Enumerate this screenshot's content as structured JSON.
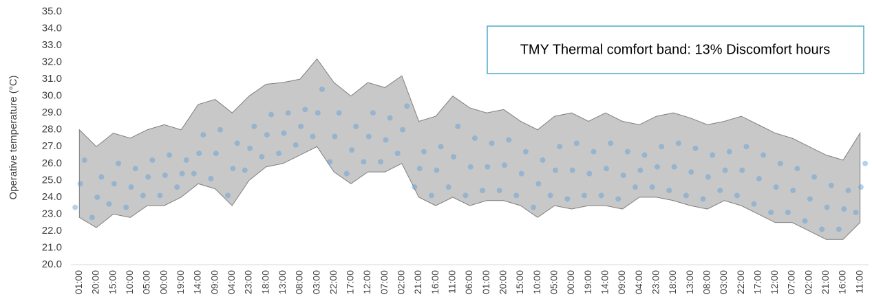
{
  "chart_data": {
    "type": "band_scatter",
    "ylabel": "Operative temperature (°C)",
    "annotation": "TMY Thermal comfort band: 13% Discomfort hours",
    "categories": [
      "01:00",
      "20:00",
      "15:00",
      "10:00",
      "05:00",
      "00:00",
      "19:00",
      "14:00",
      "09:00",
      "04:00",
      "23:00",
      "18:00",
      "13:00",
      "08:00",
      "03:00",
      "22:00",
      "17:00",
      "12:00",
      "07:00",
      "02:00",
      "21:00",
      "16:00",
      "11:00",
      "06:00",
      "01:00",
      "20:00",
      "15:00",
      "10:00",
      "05:00",
      "00:00",
      "19:00",
      "14:00",
      "09:00",
      "04:00",
      "23:00",
      "18:00",
      "13:00",
      "08:00",
      "03:00",
      "22:00",
      "17:00",
      "12:00",
      "07:00",
      "02:00",
      "21:00",
      "16:00",
      "11:00"
    ],
    "band": {
      "color": "#c8c8c8",
      "edge_color": "#7f7f7f",
      "upper": [
        28.0,
        27.0,
        27.8,
        27.5,
        28.0,
        28.3,
        28.0,
        29.5,
        29.8,
        29.0,
        30.0,
        30.7,
        30.8,
        31.0,
        32.2,
        30.8,
        30.0,
        30.8,
        30.5,
        31.2,
        28.5,
        28.8,
        30.0,
        29.3,
        29.0,
        29.2,
        28.5,
        28.0,
        28.8,
        29.0,
        28.5,
        29.0,
        28.5,
        28.3,
        28.8,
        29.0,
        28.7,
        28.3,
        28.5,
        28.8,
        28.3,
        27.8,
        27.5,
        27.0,
        26.5,
        26.2,
        27.8
      ],
      "lower": [
        22.8,
        22.2,
        23.0,
        22.8,
        23.5,
        23.5,
        24.0,
        24.8,
        24.5,
        23.5,
        25.0,
        25.8,
        26.0,
        26.5,
        27.0,
        25.5,
        24.8,
        25.5,
        25.5,
        26.0,
        24.0,
        23.5,
        24.0,
        23.5,
        23.8,
        23.8,
        23.5,
        22.8,
        23.5,
        23.3,
        23.5,
        23.5,
        23.3,
        24.0,
        24.0,
        23.8,
        23.5,
        23.3,
        23.8,
        23.5,
        23.0,
        22.5,
        22.5,
        22.0,
        21.5,
        21.5,
        22.5
      ]
    },
    "points": {
      "color": "#5b9bd5",
      "series": [
        {
          "values": [
            23.4,
            22.8,
            23.6,
            23.4,
            24.1,
            24.1,
            24.6,
            25.4,
            25.1,
            24.1,
            25.6,
            26.4,
            26.6,
            27.1,
            27.6,
            26.1,
            25.4,
            26.1,
            26.1,
            26.6,
            24.6,
            24.1,
            24.6,
            24.1,
            24.4,
            24.4,
            24.1,
            23.4,
            24.1,
            23.9,
            24.1,
            24.1,
            23.9,
            24.6,
            24.6,
            24.4,
            24.1,
            23.9,
            24.4,
            24.1,
            23.6,
            23.1,
            23.1,
            22.6,
            22.1,
            22.1,
            23.1
          ]
        },
        {
          "values": [
            24.8,
            24.0,
            24.8,
            24.6,
            25.2,
            25.3,
            25.4,
            26.6,
            26.6,
            25.7,
            26.9,
            27.7,
            27.8,
            28.2,
            29.0,
            27.6,
            26.8,
            27.6,
            27.4,
            28.0,
            25.7,
            25.6,
            26.4,
            25.8,
            25.8,
            25.9,
            25.4,
            24.8,
            25.6,
            25.6,
            25.4,
            25.7,
            25.3,
            25.6,
            25.8,
            25.8,
            25.5,
            25.2,
            25.6,
            25.6,
            25.1,
            24.6,
            24.4,
            23.9,
            23.4,
            23.3,
            24.6
          ]
        },
        {
          "values": [
            26.2,
            25.2,
            26.0,
            25.7,
            26.2,
            26.5,
            26.2,
            27.7,
            28.0,
            27.2,
            28.2,
            28.9,
            29.0,
            29.2,
            30.4,
            29.0,
            28.2,
            29.0,
            28.7,
            29.4,
            26.7,
            27.0,
            28.2,
            27.5,
            27.2,
            27.4,
            26.7,
            26.2,
            27.0,
            27.2,
            26.7,
            27.2,
            26.7,
            26.5,
            27.0,
            27.2,
            26.9,
            26.5,
            26.7,
            27.0,
            26.5,
            26.0,
            25.7,
            25.2,
            24.7,
            24.4,
            26.0
          ]
        }
      ]
    },
    "ylim": [
      20,
      35
    ],
    "yticks": [
      {
        "value": 20,
        "label": "20.0"
      },
      {
        "value": 21,
        "label": "21.0"
      },
      {
        "value": 22,
        "label": "22.0"
      },
      {
        "value": 23,
        "label": "23.0"
      },
      {
        "value": 24,
        "label": "24.0"
      },
      {
        "value": 25,
        "label": "25.0"
      },
      {
        "value": 26,
        "label": "26.0"
      },
      {
        "value": 27,
        "label": "27.0"
      },
      {
        "value": 28,
        "label": "28.0"
      },
      {
        "value": 29,
        "label": "29.0"
      },
      {
        "value": 30,
        "label": "30.0"
      },
      {
        "value": 31,
        "label": "31.0"
      },
      {
        "value": 32,
        "label": "32.0"
      },
      {
        "value": 33,
        "label": "33.0"
      },
      {
        "value": 34,
        "label": "34.0"
      },
      {
        "value": 35,
        "label": "35.0"
      }
    ]
  }
}
